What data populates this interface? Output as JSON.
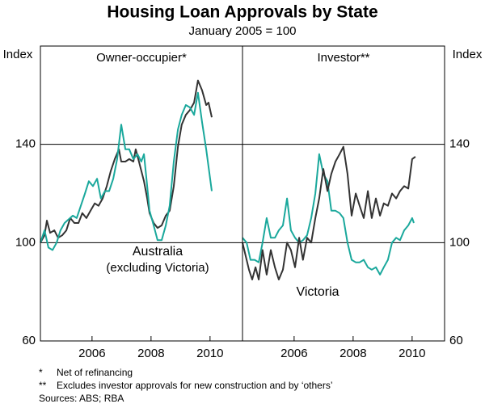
{
  "title": "Housing Loan Approvals by State",
  "subtitle": "January 2005 = 100",
  "footnotes": [
    {
      "mark": "*",
      "text": "Net of refinancing"
    },
    {
      "mark": "**",
      "text": "Excludes investor approvals for new construction and by ‘others’"
    }
  ],
  "sources": "Sources: ABS; RBA",
  "chart_data": [
    {
      "type": "line",
      "title": "Owner-occupier*",
      "ylabel": "Index",
      "yaxis_side": "left",
      "xlim": [
        2004.25,
        2011.1
      ],
      "xticks": [
        2006,
        2008,
        2010
      ],
      "ylim": [
        60,
        180
      ],
      "yticks": [
        60,
        100,
        140
      ],
      "grid": true,
      "series": [
        {
          "color": "#333333",
          "x": [
            2004.25,
            2004.39,
            2004.47,
            2004.58,
            2004.72,
            2004.85,
            2004.99,
            2005.13,
            2005.26,
            2005.4,
            2005.54,
            2005.67,
            2005.81,
            2005.95,
            2006.09,
            2006.22,
            2006.36,
            2006.5,
            2006.63,
            2006.77,
            2006.91,
            2006.99,
            2007.13,
            2007.26,
            2007.4,
            2007.48,
            2007.59,
            2007.76,
            2007.87,
            2007.95,
            2008.09,
            2008.22,
            2008.36,
            2008.5,
            2008.63,
            2008.77,
            2008.91,
            2009.04,
            2009.18,
            2009.32,
            2009.46,
            2009.59,
            2009.73,
            2009.87,
            2009.95,
            2010.06
          ],
          "values": [
            100,
            103,
            109,
            104,
            105,
            102,
            103,
            105,
            110,
            108,
            108,
            112,
            110,
            113,
            116,
            115,
            118,
            123,
            129,
            134,
            138,
            133,
            133,
            134,
            133,
            138,
            133,
            125,
            118,
            112,
            108,
            106,
            107,
            111,
            113,
            123,
            139,
            148,
            152,
            154,
            157,
            166,
            162,
            156,
            157,
            151
          ]
        },
        {
          "color": "#1aa89c",
          "label_lines": [
            "Australia",
            "(excluding Victoria)"
          ],
          "x": [
            2004.25,
            2004.39,
            2004.52,
            2004.66,
            2004.8,
            2004.93,
            2005.07,
            2005.35,
            2005.48,
            2005.62,
            2005.76,
            2005.89,
            2006.03,
            2006.17,
            2006.3,
            2006.44,
            2006.58,
            2006.72,
            2006.85,
            2006.99,
            2007.13,
            2007.26,
            2007.4,
            2007.54,
            2007.67,
            2007.76,
            2007.87,
            2007.95,
            2008.09,
            2008.22,
            2008.36,
            2008.5,
            2008.63,
            2008.77,
            2008.91,
            2009.04,
            2009.18,
            2009.32,
            2009.46,
            2009.59,
            2009.73,
            2009.87,
            2010.06
          ],
          "values": [
            100,
            105,
            98,
            97,
            100,
            105,
            108,
            111,
            110,
            115,
            120,
            125,
            123,
            126,
            118,
            121,
            121,
            126,
            134,
            148,
            138,
            138,
            134,
            136,
            133,
            136,
            123,
            113,
            107,
            101,
            101,
            107,
            115,
            133,
            146,
            152,
            156,
            155,
            152,
            161,
            149,
            138,
            121
          ]
        }
      ]
    },
    {
      "type": "line",
      "title": "Investor**",
      "ylabel": "Index",
      "yaxis_side": "right",
      "xlim": [
        2004.25,
        2011.1
      ],
      "xticks": [
        2006,
        2008,
        2010
      ],
      "ylim": [
        60,
        180
      ],
      "yticks": [
        60,
        100,
        140
      ],
      "grid": true,
      "series": [
        {
          "color": "#1aa89c",
          "x": [
            2004.25,
            2004.39,
            2004.52,
            2004.66,
            2004.8,
            2004.93,
            2005.07,
            2005.21,
            2005.35,
            2005.48,
            2005.62,
            2005.76,
            2005.89,
            2006.03,
            2006.17,
            2006.3,
            2006.44,
            2006.58,
            2006.72,
            2006.85,
            2006.99,
            2007.13,
            2007.26,
            2007.4,
            2007.54,
            2007.67,
            2007.81,
            2007.95,
            2008.09,
            2008.22,
            2008.36,
            2008.5,
            2008.63,
            2008.77,
            2008.91,
            2009.04,
            2009.18,
            2009.32,
            2009.46,
            2009.59,
            2009.73,
            2009.87,
            2010.0,
            2010.06
          ],
          "values": [
            102,
            100,
            93,
            93,
            92,
            100,
            110,
            102,
            102,
            105,
            107,
            118,
            105,
            102,
            100,
            101,
            103,
            110,
            120,
            136,
            128,
            125,
            113,
            113,
            112,
            110,
            100,
            93,
            92,
            92,
            93,
            90,
            89,
            90,
            87,
            90,
            93,
            100,
            102,
            101,
            105,
            107,
            110,
            108
          ]
        },
        {
          "color": "#333333",
          "label_lines": [
            "Victoria"
          ],
          "x": [
            2004.25,
            2004.39,
            2004.47,
            2004.58,
            2004.69,
            2004.8,
            2004.93,
            2005.07,
            2005.21,
            2005.35,
            2005.48,
            2005.62,
            2005.76,
            2005.89,
            2006.03,
            2006.17,
            2006.3,
            2006.44,
            2006.58,
            2006.72,
            2006.85,
            2006.99,
            2007.13,
            2007.26,
            2007.4,
            2007.54,
            2007.67,
            2007.81,
            2007.95,
            2008.09,
            2008.22,
            2008.36,
            2008.5,
            2008.63,
            2008.77,
            2008.91,
            2009.04,
            2009.18,
            2009.32,
            2009.46,
            2009.59,
            2009.73,
            2009.87,
            2010.0,
            2010.11
          ],
          "values": [
            100,
            93,
            89,
            85,
            90,
            85,
            97,
            87,
            97,
            90,
            85,
            89,
            100,
            97,
            90,
            102,
            93,
            102,
            100,
            110,
            118,
            130,
            121,
            128,
            133,
            136,
            139,
            128,
            111,
            120,
            115,
            110,
            121,
            110,
            118,
            111,
            116,
            115,
            120,
            118,
            121,
            123,
            122,
            134,
            135
          ]
        }
      ]
    }
  ]
}
